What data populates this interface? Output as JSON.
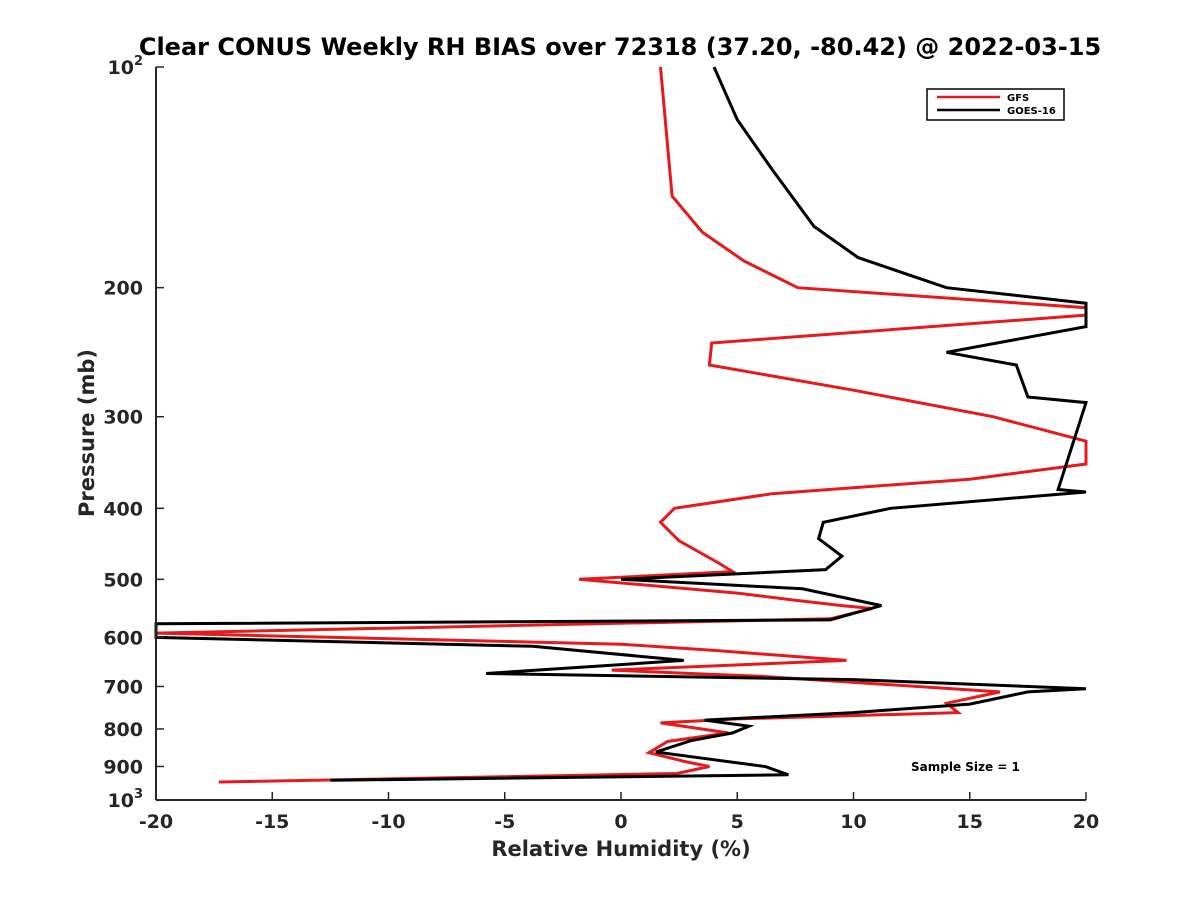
{
  "chart_data": {
    "type": "line",
    "title": "Clear CONUS Weekly RH BIAS over 72318 (37.20, -80.42) @ 2022-03-15",
    "xlabel": "Relative Humidity (%)",
    "ylabel": "Pressure (mb)",
    "xlim": [
      -20,
      20
    ],
    "ylim": [
      100,
      1000
    ],
    "y_scale": "log",
    "y_reversed": true,
    "x_ticks": [
      {
        "value": -20,
        "label": "-20"
      },
      {
        "value": -15,
        "label": "-15"
      },
      {
        "value": -10,
        "label": "-10"
      },
      {
        "value": -5,
        "label": "-5"
      },
      {
        "value": 0,
        "label": "0"
      },
      {
        "value": 5,
        "label": "5"
      },
      {
        "value": 10,
        "label": "10"
      },
      {
        "value": 15,
        "label": "15"
      },
      {
        "value": 20,
        "label": "20"
      }
    ],
    "y_ticks": [
      {
        "value": 100,
        "label": "10",
        "sup": "2"
      },
      {
        "value": 200,
        "label": "200",
        "sup": ""
      },
      {
        "value": 300,
        "label": "300",
        "sup": ""
      },
      {
        "value": 400,
        "label": "400",
        "sup": ""
      },
      {
        "value": 500,
        "label": "500",
        "sup": ""
      },
      {
        "value": 600,
        "label": "600",
        "sup": ""
      },
      {
        "value": 700,
        "label": "700",
        "sup": ""
      },
      {
        "value": 800,
        "label": "800",
        "sup": ""
      },
      {
        "value": 900,
        "label": "900",
        "sup": ""
      },
      {
        "value": 1000,
        "label": "10",
        "sup": "3"
      }
    ],
    "grid": false,
    "legend_position": "top-right",
    "annotation": "Sample Size = 1",
    "series": [
      {
        "name": "GFS",
        "color": "#e41a1c",
        "points": [
          [
            1.7,
            100
          ],
          [
            2.2,
            150
          ],
          [
            3.5,
            168
          ],
          [
            5.3,
            184
          ],
          [
            7.6,
            200
          ],
          [
            20,
            213
          ],
          [
            20,
            218
          ],
          [
            3.9,
            238
          ],
          [
            3.8,
            255
          ],
          [
            10,
            276
          ],
          [
            16,
            300
          ],
          [
            20,
            324
          ],
          [
            20,
            327
          ],
          [
            20,
            348
          ],
          [
            15,
            365
          ],
          [
            6.5,
            382
          ],
          [
            2.3,
            400
          ],
          [
            1.7,
            418
          ],
          [
            2.5,
            443
          ],
          [
            4.2,
            475
          ],
          [
            4.8,
            488
          ],
          [
            -1.8,
            500
          ],
          [
            5,
            522
          ],
          [
            7.5,
            534
          ],
          [
            9.5,
            543
          ],
          [
            10.8,
            548
          ],
          [
            9.0,
            566
          ],
          [
            -20,
            592
          ],
          [
            0,
            613
          ],
          [
            4,
            625
          ],
          [
            9.7,
            645
          ],
          [
            -0.4,
            665
          ],
          [
            3,
            672
          ],
          [
            6,
            678
          ],
          [
            16.3,
            712
          ],
          [
            14,
            738
          ],
          [
            14.5,
            760
          ],
          [
            5,
            775
          ],
          [
            1.7,
            785
          ],
          [
            4.6,
            810
          ],
          [
            2,
            832
          ],
          [
            1.2,
            862
          ],
          [
            2.8,
            887
          ],
          [
            3.8,
            900
          ],
          [
            2.4,
            920
          ],
          [
            -17.3,
            945
          ]
        ]
      },
      {
        "name": "GOES-16",
        "color": "#000000",
        "points": [
          [
            4,
            100
          ],
          [
            5,
            118
          ],
          [
            6.5,
            138
          ],
          [
            8.3,
            165
          ],
          [
            10.2,
            182
          ],
          [
            14,
            200
          ],
          [
            20,
            210
          ],
          [
            20,
            226
          ],
          [
            14,
            245
          ],
          [
            17,
            255
          ],
          [
            17.5,
            282
          ],
          [
            20,
            287
          ],
          [
            18.8,
            377
          ],
          [
            20,
            380
          ],
          [
            11.6,
            400
          ],
          [
            8.7,
            418
          ],
          [
            8.5,
            440
          ],
          [
            9.5,
            465
          ],
          [
            8.8,
            485
          ],
          [
            0,
            500
          ],
          [
            7.8,
            515
          ],
          [
            11.2,
            543
          ],
          [
            9.0,
            568
          ],
          [
            -20,
            575
          ],
          [
            -20,
            600
          ],
          [
            -3.8,
            617
          ],
          [
            2.7,
            645
          ],
          [
            -5.8,
            672
          ],
          [
            10,
            685
          ],
          [
            20,
            705
          ],
          [
            17.5,
            712
          ],
          [
            15,
            740
          ],
          [
            10,
            760
          ],
          [
            3.6,
            778
          ],
          [
            5.5,
            793
          ],
          [
            4.8,
            810
          ],
          [
            3,
            830
          ],
          [
            2.5,
            840
          ],
          [
            1.5,
            860
          ],
          [
            3.5,
            877
          ],
          [
            6.2,
            900
          ],
          [
            7.2,
            924
          ],
          [
            -12.5,
            940
          ]
        ]
      }
    ]
  }
}
